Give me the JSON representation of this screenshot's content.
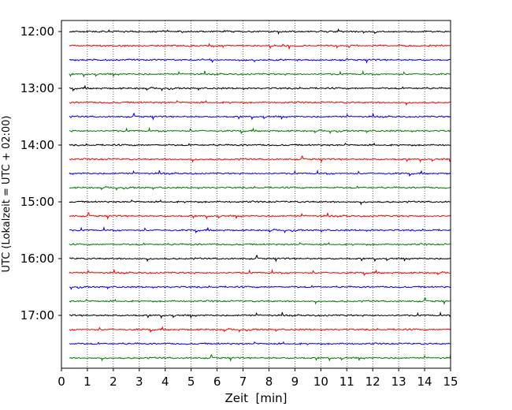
{
  "chart_data": {
    "type": "line",
    "title": "",
    "xlabel": "Zeit  [min]",
    "ylabel": "UTC (Lokalzeit = UTC + 02:00)",
    "xlim": [
      0,
      15
    ],
    "xticks": [
      0,
      1,
      2,
      3,
      4,
      5,
      6,
      7,
      8,
      9,
      10,
      11,
      12,
      13,
      14,
      15
    ],
    "x_grid": true,
    "y_tick_labels": [
      "12:00",
      "13:00",
      "14:00",
      "15:00",
      "16:00",
      "17:00"
    ],
    "trace_interval_min": 15,
    "trace_count": 24,
    "trace_colors": [
      "#000000",
      "#ff0000",
      "#0000ff",
      "#008000"
    ],
    "trace_start_times": [
      "12:00",
      "12:15",
      "12:30",
      "12:45",
      "13:00",
      "13:15",
      "13:30",
      "13:45",
      "14:00",
      "14:15",
      "14:30",
      "14:45",
      "15:00",
      "15:15",
      "15:30",
      "15:45",
      "16:00",
      "16:15",
      "16:30",
      "16:45",
      "17:00",
      "17:15",
      "17:30",
      "17:45"
    ]
  }
}
